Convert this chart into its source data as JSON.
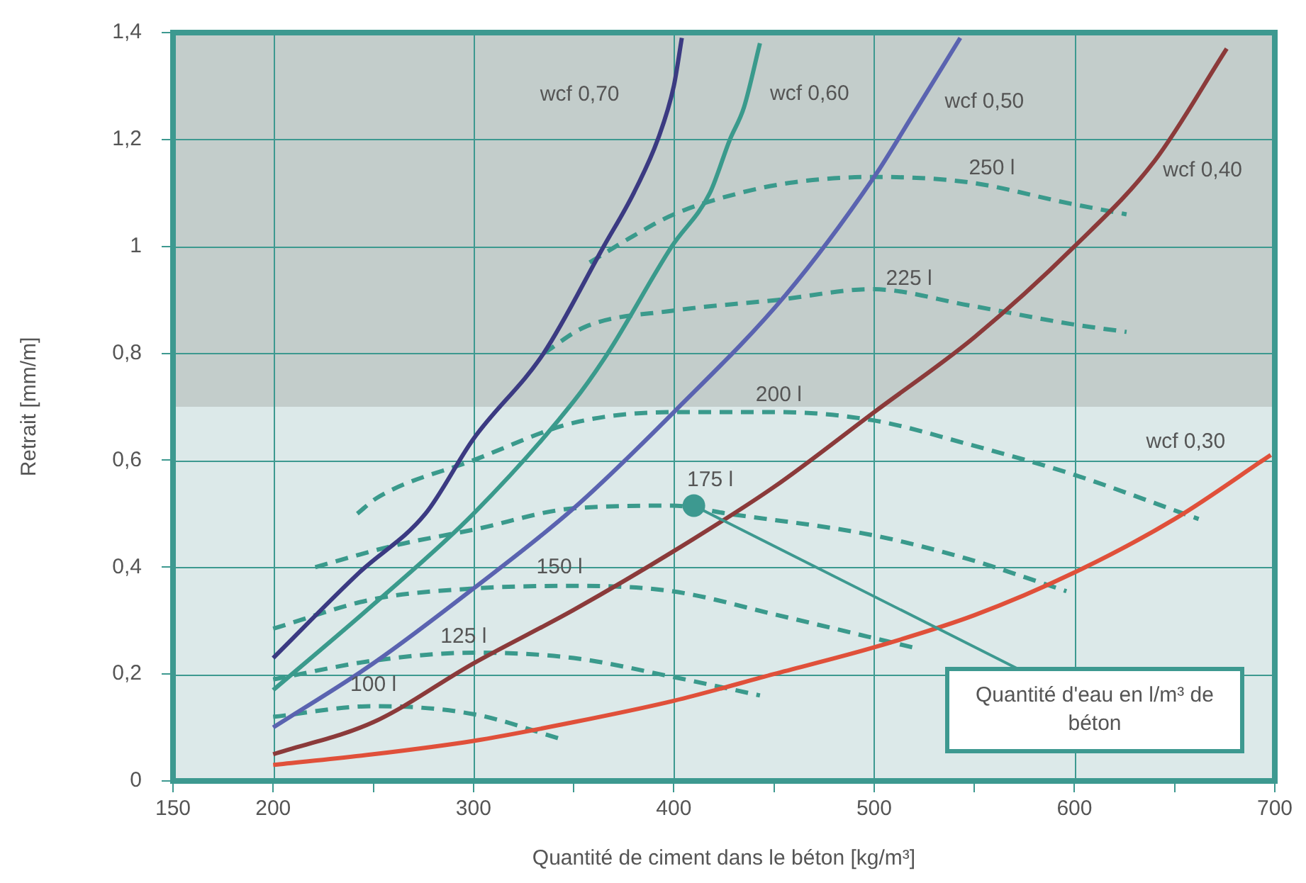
{
  "chart_data": {
    "type": "line",
    "xlabel": "Quantité de ciment dans le béton [kg/m³]",
    "ylabel": "Retrait [mm/m]",
    "xlim": [
      150,
      700
    ],
    "ylim": [
      0,
      1.4
    ],
    "xticks": [
      150,
      200,
      {
        "value": 250,
        "label": null
      },
      300,
      {
        "value": 350,
        "label": null
      },
      400,
      {
        "value": 450,
        "label": null
      },
      500,
      {
        "value": 550,
        "label": null
      },
      600,
      {
        "value": 650,
        "label": null
      },
      700
    ],
    "yticks": [
      0,
      {
        "value": 0.2,
        "label": "0,2"
      },
      {
        "value": 0.4,
        "label": "0,4"
      },
      {
        "value": 0.6,
        "label": "0,6"
      },
      {
        "value": 0.8,
        "label": "0,8"
      },
      1,
      {
        "value": 1.2,
        "label": "1,2"
      },
      {
        "value": 1.4,
        "label": "1,4"
      }
    ],
    "grid": true,
    "legend": false,
    "bands": [
      {
        "axis": "y",
        "from": 0,
        "to": 0.7,
        "color": "#dce9e9"
      },
      {
        "axis": "y",
        "from": 0.7,
        "to": 1.4,
        "color": "#c3cdcb"
      }
    ],
    "series": [
      {
        "name": "wcf 0,70",
        "color": "#3b3a82",
        "line_style": "solid",
        "x": [
          200,
          243,
          276,
          300,
          335,
          365,
          380,
          392,
          400,
          404
        ],
        "values": [
          0.23,
          0.39,
          0.5,
          0.64,
          0.8,
          1.0,
          1.1,
          1.2,
          1.3,
          1.39
        ]
      },
      {
        "name": "wcf 0,60",
        "color": "#3a9a8c",
        "line_style": "solid",
        "x": [
          200,
          250,
          300,
          350,
          367,
          399,
          418,
          428,
          435,
          443
        ],
        "values": [
          0.17,
          0.33,
          0.5,
          0.71,
          0.8,
          1.0,
          1.1,
          1.2,
          1.26,
          1.38
        ]
      },
      {
        "name": "wcf 0,50",
        "color": "#5a63b0",
        "line_style": "solid",
        "x": [
          200,
          250,
          300,
          350,
          400,
          456,
          500,
          520,
          543
        ],
        "values": [
          0.1,
          0.22,
          0.36,
          0.51,
          0.69,
          0.91,
          1.13,
          1.25,
          1.39
        ]
      },
      {
        "name": "wcf 0,40",
        "color": "#8b3a3a",
        "line_style": "solid",
        "x": [
          200,
          250,
          300,
          350,
          400,
          450,
          500,
          550,
          600,
          640,
          676
        ],
        "values": [
          0.05,
          0.11,
          0.22,
          0.32,
          0.43,
          0.55,
          0.69,
          0.83,
          1.0,
          1.16,
          1.37
        ]
      },
      {
        "name": "wcf 0,30",
        "color": "#e0503a",
        "line_style": "solid",
        "x": [
          200,
          250,
          300,
          350,
          400,
          450,
          500,
          550,
          600,
          650,
          698
        ],
        "values": [
          0.03,
          0.05,
          0.075,
          0.11,
          0.15,
          0.2,
          0.25,
          0.31,
          0.39,
          0.49,
          0.61
        ]
      },
      {
        "name": "250 l",
        "color": "#3a9a8c",
        "line_style": "dashed",
        "x": [
          358,
          380,
          400,
          433,
          460,
          500,
          547,
          598,
          626
        ],
        "values": [
          0.97,
          1.02,
          1.06,
          1.1,
          1.12,
          1.13,
          1.12,
          1.08,
          1.06
        ]
      },
      {
        "name": "225 l",
        "color": "#3a9a8c",
        "line_style": "dashed",
        "x": [
          335,
          356,
          400,
          452,
          499,
          547,
          598,
          626
        ],
        "values": [
          0.8,
          0.85,
          0.88,
          0.9,
          0.92,
          0.89,
          0.855,
          0.84
        ]
      },
      {
        "name": "200 l",
        "color": "#3a9a8c",
        "line_style": "dashed",
        "x": [
          242,
          252,
          300,
          350,
          400,
          452,
          499,
          547,
          598,
          662
        ],
        "values": [
          0.5,
          0.53,
          0.6,
          0.67,
          0.69,
          0.69,
          0.675,
          0.63,
          0.575,
          0.49
        ]
      },
      {
        "name": "175 l",
        "color": "#3a9a8c",
        "line_style": "dashed",
        "x": [
          221,
          260,
          300,
          350,
          399,
          427,
          499,
          547,
          596
        ],
        "values": [
          0.4,
          0.44,
          0.47,
          0.51,
          0.515,
          0.5,
          0.46,
          0.415,
          0.355
        ]
      },
      {
        "name": "150 l",
        "color": "#3a9a8c",
        "line_style": "dashed",
        "x": [
          200,
          250,
          300,
          350,
          399,
          452,
          519
        ],
        "values": [
          0.285,
          0.34,
          0.36,
          0.365,
          0.355,
          0.31,
          0.25
        ]
      },
      {
        "name": "125 l",
        "color": "#3a9a8c",
        "line_style": "dashed",
        "x": [
          200,
          250,
          300,
          350,
          399,
          443
        ],
        "values": [
          0.19,
          0.225,
          0.24,
          0.23,
          0.195,
          0.16
        ]
      },
      {
        "name": "100 l",
        "color": "#3a9a8c",
        "line_style": "dashed",
        "x": [
          200,
          250,
          300,
          345
        ],
        "values": [
          0.12,
          0.14,
          0.125,
          0.077
        ]
      }
    ],
    "annotations": [
      {
        "text": "Quantité d'eau en l/m³ de béton",
        "x": 410,
        "y": 0.515
      }
    ]
  }
}
